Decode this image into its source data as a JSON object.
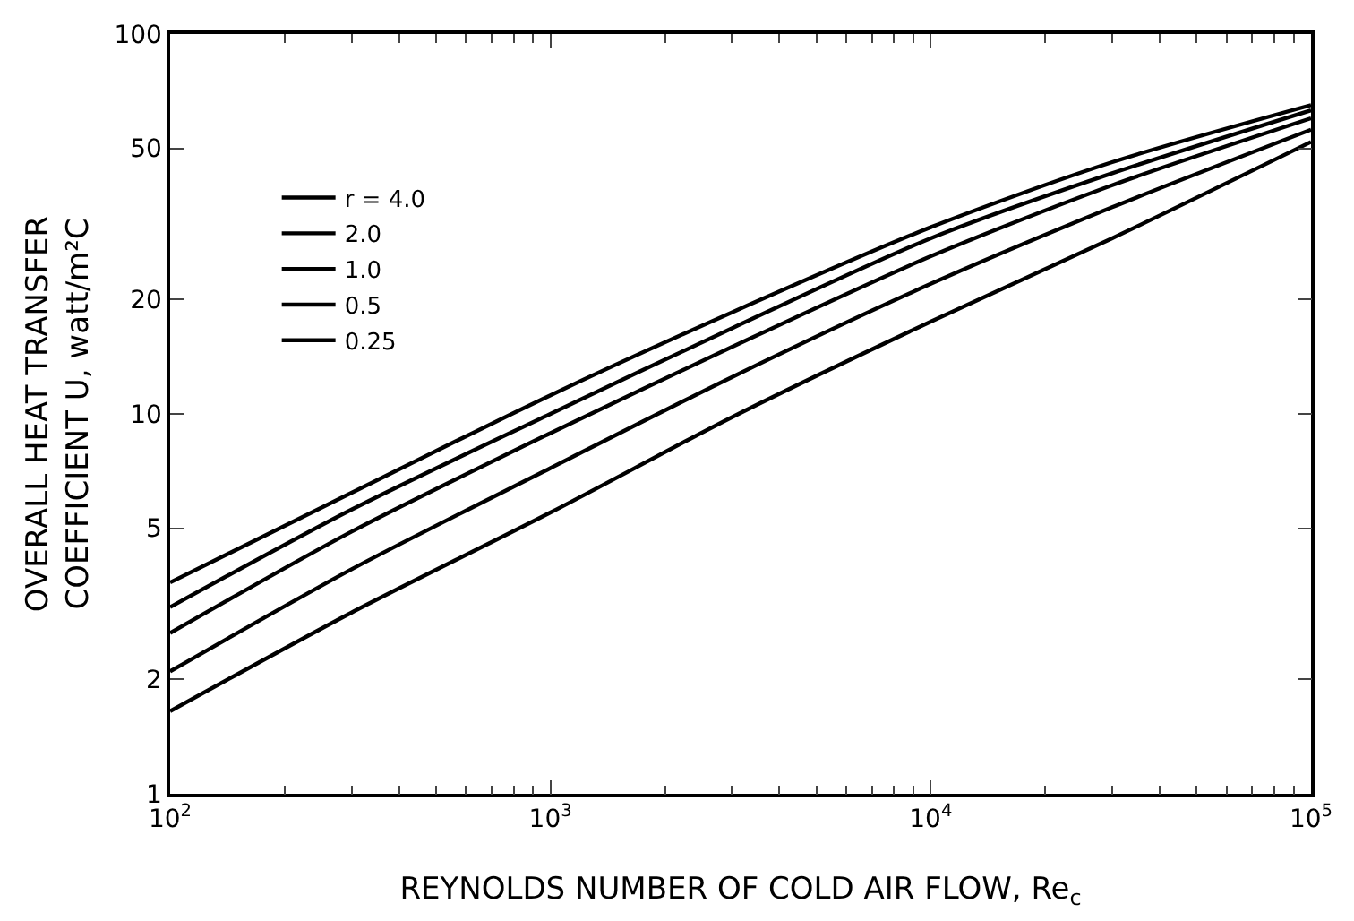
{
  "chart_data": {
    "type": "line",
    "xlabel": "REYNOLDS NUMBER OF COLD AIR FLOW, Re$_{c}$",
    "ylabel": "OVERALL HEAT TRANSFER\nCOEFFICIENT U, watt/m²C",
    "x": [
      100,
      300,
      1000,
      3000,
      10000,
      30000,
      100000
    ],
    "series": [
      {
        "name": "r = 4.0",
        "color": "#000000",
        "values": [
          3.6,
          6.2,
          11.2,
          18.5,
          31,
          46,
          65
        ]
      },
      {
        "name": "2.0",
        "color": "#000000",
        "values": [
          3.1,
          5.6,
          10.0,
          16.8,
          29,
          43,
          63
        ]
      },
      {
        "name": "1.0",
        "color": "#000000",
        "values": [
          2.65,
          4.9,
          8.9,
          15,
          26,
          40,
          60
        ]
      },
      {
        "name": "0.5",
        "color": "#000000",
        "values": [
          2.1,
          3.9,
          7.2,
          12.5,
          22,
          35,
          56
        ]
      },
      {
        "name": "0.25",
        "color": "#000000",
        "values": [
          1.65,
          3.0,
          5.5,
          9.8,
          17.5,
          29,
          52
        ]
      }
    ],
    "log": "xy",
    "xlim": [
      100,
      100000
    ],
    "ylim": [
      1,
      100
    ],
    "xticks": [
      {
        "value": 100,
        "label": "10$^{2}$"
      },
      {
        "value": 1000,
        "label": "10$^{3}$"
      },
      {
        "value": 10000,
        "label": "10$^{4}$"
      },
      {
        "value": 100000,
        "label": "10$^{5}$"
      }
    ],
    "yticks": [
      1,
      2,
      5,
      10,
      20,
      50,
      100
    ],
    "legend": "top left",
    "marker": "none",
    "line_style": "solid"
  }
}
